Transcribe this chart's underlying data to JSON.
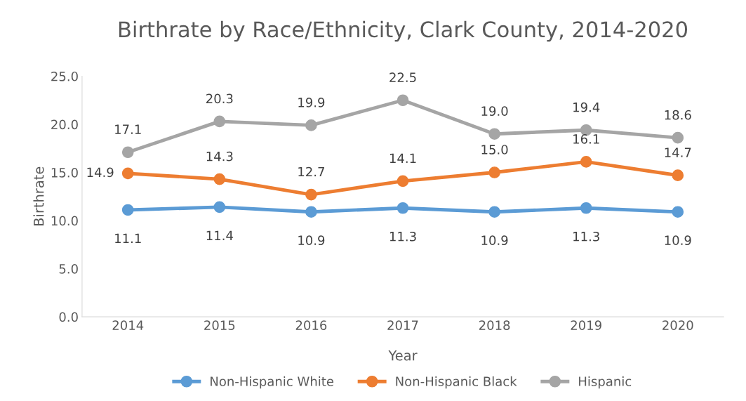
{
  "chart_data": {
    "type": "line",
    "title": "Birthrate by Race/Ethnicity, Clark County, 2014-2020",
    "xlabel": "Year",
    "ylabel": "Birthrate",
    "categories": [
      "2014",
      "2015",
      "2016",
      "2017",
      "2018",
      "2019",
      "2020"
    ],
    "series": [
      {
        "name": "Non-Hispanic White",
        "color": "#5b9bd5",
        "values": [
          11.1,
          11.4,
          10.9,
          11.3,
          10.9,
          11.3,
          10.9
        ],
        "value_labels": [
          "11.1",
          "11.4",
          "10.9",
          "11.3",
          "10.9",
          "11.3",
          "10.9"
        ]
      },
      {
        "name": "Non-Hispanic Black",
        "color": "#ed7d31",
        "values": [
          14.9,
          14.3,
          12.7,
          14.1,
          15.0,
          16.1,
          14.7
        ],
        "value_labels": [
          "14.9",
          "14.3",
          "12.7",
          "14.1",
          "15.0",
          "16.1",
          "14.7"
        ]
      },
      {
        "name": "Hispanic",
        "color": "#a5a5a5",
        "values": [
          17.1,
          20.3,
          19.9,
          22.5,
          19.0,
          19.4,
          18.6
        ],
        "value_labels": [
          "17.1",
          "20.3",
          "19.9",
          "22.5",
          "19.0",
          "19.4",
          "18.6"
        ]
      }
    ],
    "ylim": [
      0,
      25
    ],
    "yticks": [
      {
        "value": 0,
        "label": "0.0"
      },
      {
        "value": 5,
        "label": "5.0"
      },
      {
        "value": 10,
        "label": "10.0"
      },
      {
        "value": 15,
        "label": "15.0"
      },
      {
        "value": 20,
        "label": "20.0"
      },
      {
        "value": 25,
        "label": "25.0"
      }
    ],
    "grid": false,
    "legend": "bottom",
    "marker": "circle",
    "line_style": "solid"
  }
}
